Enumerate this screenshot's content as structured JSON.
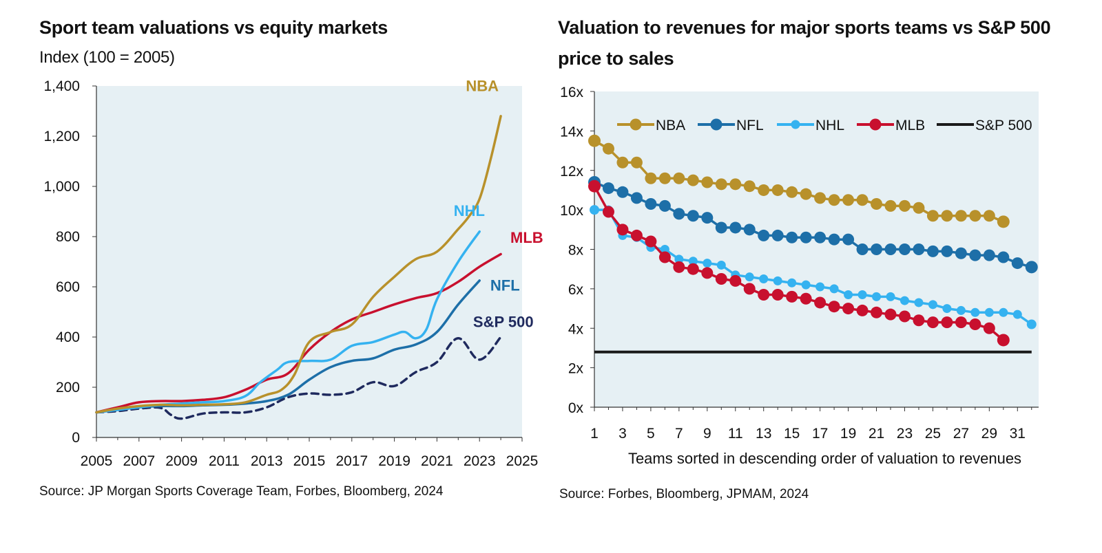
{
  "left": {
    "title": "Sport team valuations vs equity markets",
    "subtitle": "Index (100 = 2005)",
    "source": "Source: JP Morgan Sports Coverage Team, Forbes, Bloomberg, 2024"
  },
  "right": {
    "title_line1": "Valuation to revenues for major sports teams vs S&P 500",
    "title_line2": "price to sales",
    "source": "Source: Forbes, Bloomberg, JPMAM, 2024"
  },
  "colors": {
    "NBA": "#b8912b",
    "NFL": "#1d6fa8",
    "NHL": "#35b2f0",
    "MLB": "#c8102e",
    "SP500": "#1f2a5e",
    "SP500_right": "#1a1a1a",
    "plot_bg": "#e6f0f4"
  },
  "chart_data": [
    {
      "type": "line",
      "title": "Sport team valuations vs equity markets",
      "subtitle": "Index (100 = 2005)",
      "xlim": [
        2005,
        2025
      ],
      "ylim": [
        0,
        1400
      ],
      "xticks": [
        "2005",
        "2007",
        "2009",
        "2011",
        "2013",
        "2015",
        "2017",
        "2019",
        "2021",
        "2023",
        "2025"
      ],
      "yticks": [
        "0",
        "200",
        "400",
        "600",
        "800",
        "1,000",
        "1,200",
        "1,400"
      ],
      "grid": false,
      "series": [
        {
          "name": "NBA",
          "x": [
            2005,
            2006,
            2007,
            2008,
            2009,
            2010,
            2011,
            2012,
            2013,
            2013.7,
            2014.3,
            2015,
            2016,
            2017,
            2018,
            2019,
            2020,
            2021,
            2022,
            2022.5,
            2023,
            2023.5,
            2024
          ],
          "y": [
            100,
            115,
            125,
            130,
            128,
            130,
            132,
            140,
            170,
            190,
            250,
            380,
            420,
            450,
            560,
            640,
            710,
            740,
            830,
            880,
            950,
            1100,
            1280
          ]
        },
        {
          "name": "NHL",
          "x": [
            2005,
            2006,
            2007,
            2008,
            2009,
            2010,
            2011,
            2012,
            2012.7,
            2013.5,
            2014,
            2015,
            2016,
            2017,
            2018,
            2019,
            2019.5,
            2020,
            2020.5,
            2021,
            2022,
            2023
          ],
          "y": [
            100,
            110,
            120,
            130,
            135,
            140,
            145,
            165,
            220,
            270,
            300,
            305,
            310,
            365,
            380,
            410,
            420,
            395,
            430,
            550,
            700,
            820
          ]
        },
        {
          "name": "MLB",
          "x": [
            2005,
            2006,
            2007,
            2008,
            2009,
            2010,
            2011,
            2012,
            2013,
            2014,
            2015,
            2016,
            2017,
            2018,
            2019,
            2020,
            2021,
            2022,
            2023,
            2024
          ],
          "y": [
            100,
            120,
            140,
            145,
            145,
            150,
            160,
            190,
            230,
            255,
            350,
            420,
            470,
            500,
            530,
            555,
            575,
            620,
            680,
            730
          ]
        },
        {
          "name": "NFL",
          "x": [
            2005,
            2006,
            2007,
            2008,
            2009,
            2010,
            2011,
            2012,
            2013,
            2014,
            2015,
            2016,
            2017,
            2018,
            2019,
            2020,
            2021,
            2022,
            2023
          ],
          "y": [
            100,
            110,
            120,
            125,
            125,
            128,
            130,
            135,
            145,
            170,
            230,
            280,
            305,
            315,
            350,
            370,
            420,
            530,
            625
          ]
        },
        {
          "name": "S&P 500",
          "dashed": true,
          "x": [
            2005,
            2006,
            2007,
            2008,
            2008.5,
            2009,
            2010,
            2011,
            2012,
            2013,
            2014,
            2015,
            2016,
            2017,
            2018,
            2019,
            2020,
            2021,
            2022,
            2023,
            2024
          ],
          "y": [
            100,
            105,
            115,
            118,
            90,
            75,
            95,
            100,
            100,
            120,
            160,
            175,
            170,
            180,
            220,
            205,
            260,
            300,
            395,
            310,
            400
          ]
        }
      ],
      "annotations": [
        {
          "text": "NBA",
          "series": "NBA"
        },
        {
          "text": "NHL",
          "series": "NHL"
        },
        {
          "text": "MLB",
          "series": "MLB"
        },
        {
          "text": "NFL",
          "series": "NFL"
        },
        {
          "text": "S&P 500",
          "series": "S&P 500"
        }
      ]
    },
    {
      "type": "line",
      "title": "Valuation to revenues for major sports teams vs S&P 500 price to sales",
      "xlabel": "Teams sorted in descending order of valuation to revenues",
      "xlim": [
        1,
        32.5
      ],
      "ylim": [
        0,
        16
      ],
      "xticks": [
        "1",
        "3",
        "5",
        "7",
        "9",
        "11",
        "13",
        "15",
        "17",
        "19",
        "21",
        "23",
        "25",
        "27",
        "29",
        "31"
      ],
      "yticks": [
        "0x",
        "2x",
        "4x",
        "6x",
        "8x",
        "10x",
        "12x",
        "14x",
        "16x"
      ],
      "legend": "top",
      "grid": false,
      "series": [
        {
          "name": "NBA",
          "markers": true,
          "y": [
            13.5,
            13.1,
            12.4,
            12.4,
            11.6,
            11.6,
            11.6,
            11.5,
            11.4,
            11.3,
            11.3,
            11.2,
            11.0,
            11.0,
            10.9,
            10.8,
            10.6,
            10.5,
            10.5,
            10.5,
            10.3,
            10.2,
            10.2,
            10.1,
            9.7,
            9.7,
            9.7,
            9.7,
            9.7,
            9.4
          ]
        },
        {
          "name": "NFL",
          "markers": true,
          "y": [
            11.4,
            11.1,
            10.9,
            10.6,
            10.3,
            10.2,
            9.8,
            9.7,
            9.6,
            9.1,
            9.1,
            9.0,
            8.7,
            8.7,
            8.6,
            8.6,
            8.6,
            8.5,
            8.5,
            8.0,
            8.0,
            8.0,
            8.0,
            8.0,
            7.9,
            7.9,
            7.8,
            7.7,
            7.7,
            7.6,
            7.3,
            7.1
          ]
        },
        {
          "name": "NHL",
          "markers": true,
          "y": [
            10.0,
            10.0,
            8.7,
            8.6,
            8.1,
            8.0,
            7.5,
            7.4,
            7.3,
            7.2,
            6.7,
            6.6,
            6.5,
            6.4,
            6.3,
            6.2,
            6.1,
            6.0,
            5.7,
            5.7,
            5.6,
            5.6,
            5.4,
            5.3,
            5.2,
            5.0,
            4.9,
            4.8,
            4.8,
            4.8,
            4.7,
            4.2
          ]
        },
        {
          "name": "MLB",
          "markers": true,
          "y": [
            11.2,
            9.9,
            9.0,
            8.7,
            8.4,
            7.6,
            7.1,
            7.0,
            6.8,
            6.5,
            6.4,
            6.0,
            5.7,
            5.7,
            5.6,
            5.5,
            5.3,
            5.1,
            5.0,
            4.9,
            4.8,
            4.7,
            4.6,
            4.4,
            4.3,
            4.3,
            4.3,
            4.2,
            4.0,
            3.4
          ]
        },
        {
          "name": "S&P 500",
          "markers": false,
          "y": [
            2.8,
            2.8,
            2.8,
            2.8,
            2.8,
            2.8,
            2.8,
            2.8,
            2.8,
            2.8,
            2.8,
            2.8,
            2.8,
            2.8,
            2.8,
            2.8,
            2.8,
            2.8,
            2.8,
            2.8,
            2.8,
            2.8,
            2.8,
            2.8,
            2.8,
            2.8,
            2.8,
            2.8,
            2.8,
            2.8,
            2.8,
            2.8
          ]
        }
      ]
    }
  ]
}
